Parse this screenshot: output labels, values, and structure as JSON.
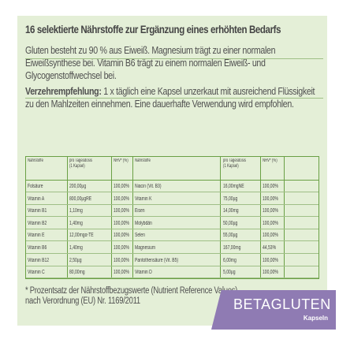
{
  "title": "16 selektierte Nährstoffe zur Ergänzung eines erhöhten Bedarfs",
  "paragraph1": "Gluten besteht zu 90 % aus Eiweiß. Magnesium trägt zu einer normalen Eiweißsynthese bei. Vitamin B6 trägt zu einem normalen Eiweiß- und Glycogenstoffwechsel bei.",
  "recommendation_label": "Verzehrempfehlung:",
  "recommendation_text": "1 x täglich eine Kapsel unzerkaut mit ausreichend Flüssigkeit zu den Mahlzeiten einnehmen. Eine dauerhafte Verwendung wird empfohlen.",
  "nutrition_table": {
    "headers_left": [
      "Nährstoffe",
      "pro Tagesdosis (1 Kapsel)",
      "NRV* (%)"
    ],
    "headers_right": [
      "Nährstoffe",
      "pro Tagesdosis (1 Kapsel)",
      "NRV* (%)"
    ],
    "rows": [
      {
        "l_name": "Folsäure",
        "l_amount": "200,00µg",
        "l_nrv": "100,00%",
        "r_name": "Niacin (Vit. B3)",
        "r_amount": "16,00mgNE",
        "r_nrv": "100,00%"
      },
      {
        "l_name": "Vitamin A",
        "l_amount": "800,00µgRE",
        "l_nrv": "100,00%",
        "r_name": "Vitamin K",
        "r_amount": "75,00µg",
        "r_nrv": "100,00%"
      },
      {
        "l_name": "Vitamin B1",
        "l_amount": "1,10mg",
        "l_nrv": "100,00%",
        "r_name": "Eisen",
        "r_amount": "14,00mg",
        "r_nrv": "100,00%"
      },
      {
        "l_name": "Vitamin B2",
        "l_amount": "1,40mg",
        "l_nrv": "100,00%",
        "r_name": "Molybdän",
        "r_amount": "50,00µg",
        "r_nrv": "100,00%"
      },
      {
        "l_name": "Vitamin E",
        "l_amount": "12,00mgα-TE",
        "l_nrv": "100,00%",
        "r_name": "Selen",
        "r_amount": "55,00µg",
        "r_nrv": "100,00%"
      },
      {
        "l_name": "Vitamin B6",
        "l_amount": "1,40mg",
        "l_nrv": "100,00%",
        "r_name": "Magnesium",
        "r_amount": "167,00mg",
        "r_nrv": "44,53%"
      },
      {
        "l_name": "Vitamin B12",
        "l_amount": "2,50µg",
        "l_nrv": "100,00%",
        "r_name": "Pantothensäure (Vit. B5)",
        "r_amount": "6,00mg",
        "r_nrv": "100,00%"
      },
      {
        "l_name": "Vitamin C",
        "l_amount": "80,00mg",
        "l_nrv": "100,00%",
        "r_name": "Vitamin D",
        "r_amount": "5,00µg",
        "r_nrv": "100,00%"
      }
    ]
  },
  "footnote": "* Prozentsatz der Nährstoffbezugswerte (Nutrient Reference Values) nach Verordnung (EU) Nr. 1169/2011",
  "badge": {
    "main": "BETAGLUTEN",
    "sub": "Kapseln"
  },
  "colors": {
    "panel_bg": "#e4efd7",
    "table_border": "#6aa045",
    "badge_bg": "#8f7bb3"
  }
}
